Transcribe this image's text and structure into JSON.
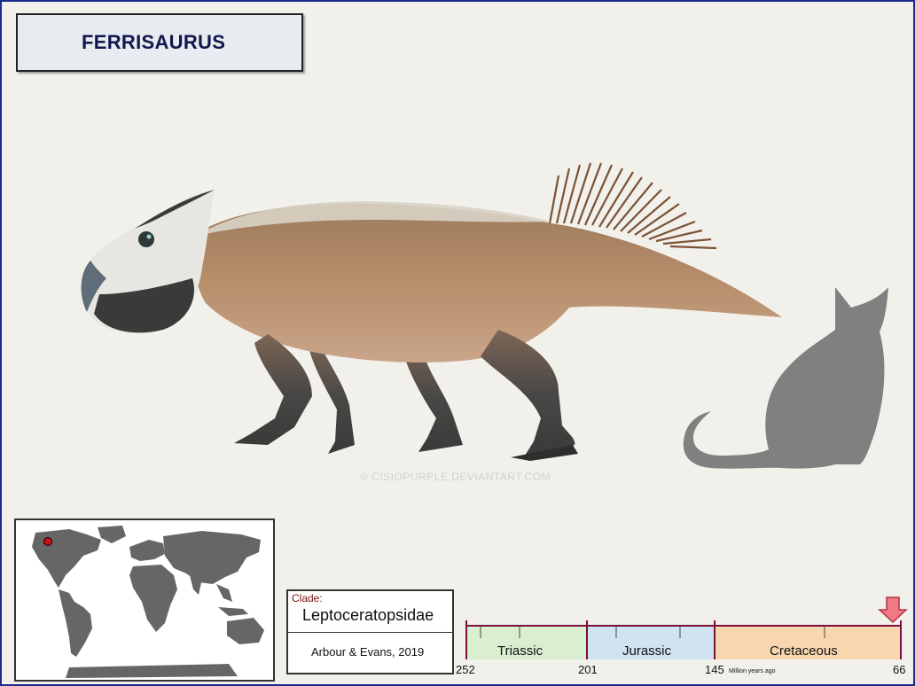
{
  "title": "FERRISAURUS",
  "watermark": "© CISIOPURPLE.DEVIANTART.COM",
  "clade": {
    "label": "Clade:",
    "name": "Leptoceratopsidae",
    "authority": "Arbour & Evans, 2019"
  },
  "timeline": {
    "periods": [
      {
        "name": "Triassic",
        "start": 252,
        "end": 201,
        "color": "#d9efcf"
      },
      {
        "name": "Jurassic",
        "start": 201,
        "end": 145,
        "color": "#cfe3f3"
      },
      {
        "name": "Cretaceous",
        "start": 145,
        "end": 66,
        "color": "#f8d7b0"
      }
    ],
    "tick_labels": [
      "252",
      "201",
      "145",
      "66"
    ],
    "unit": "Million years ago",
    "marker_age": 67
  },
  "map": {
    "locality_marker": "North America (western Canada)",
    "marker_color": "#cc1111"
  },
  "colors": {
    "frame": "#1c2a8c",
    "title_text": "#14154e",
    "silhouette": "#808080"
  },
  "icons": {
    "timeline_marker": "down-arrow-icon",
    "locality": "red-dot-icon"
  }
}
